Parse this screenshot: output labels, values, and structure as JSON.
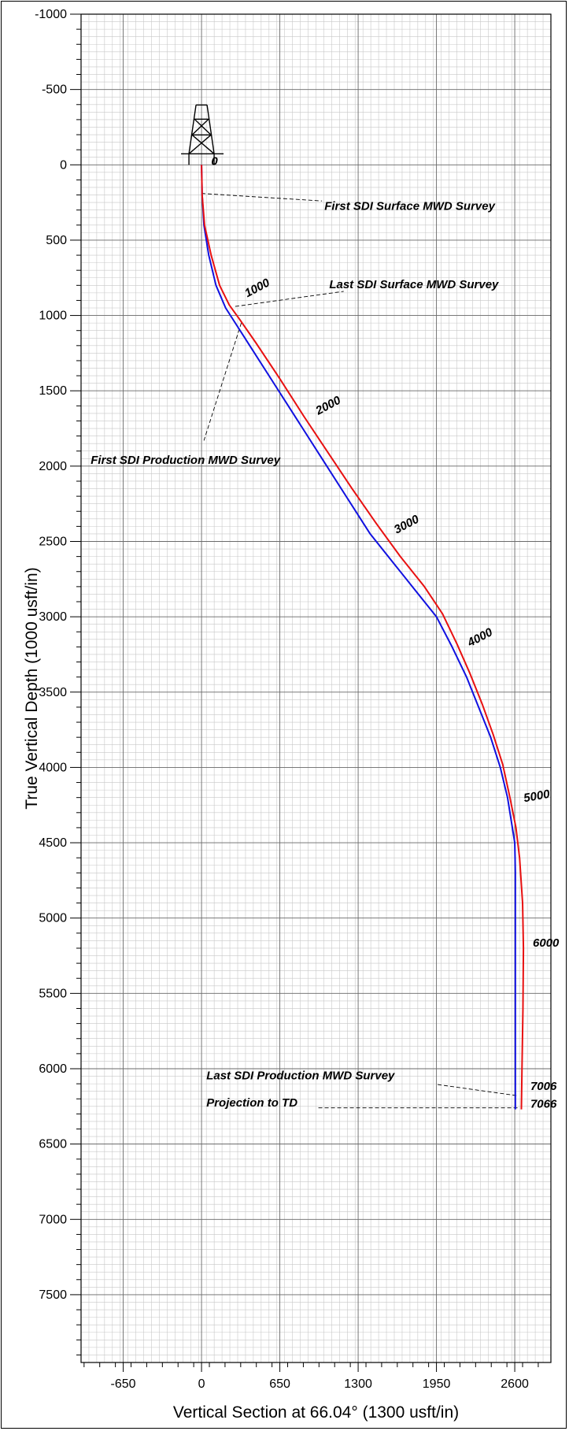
{
  "chart_data": {
    "type": "line",
    "xlabel": "Vertical Section at 66.04° (1300 usft/in)",
    "ylabel": "True Vertical Depth (1000 usft/in)",
    "xlim": [
      -1000,
      2900
    ],
    "ylim": [
      -1000,
      7950
    ],
    "y_inverted": true,
    "grid": true,
    "x_ticks": [
      -650,
      0,
      650,
      1300,
      1950,
      2600
    ],
    "y_ticks": [
      -1000,
      -500,
      0,
      500,
      1000,
      1500,
      2000,
      2500,
      3000,
      3500,
      4000,
      4500,
      5000,
      5500,
      6000,
      6500,
      7000,
      7500
    ],
    "series": [
      {
        "color": "#1010e0",
        "x": [
          0,
          5,
          20,
          60,
          120,
          200,
          280,
          400,
          600,
          800,
          1000,
          1200,
          1400,
          1600,
          1800,
          1950,
          2080,
          2200,
          2300,
          2400,
          2480,
          2540,
          2580,
          2600,
          2605,
          2605,
          2605,
          2605,
          2605
        ],
        "y": [
          0,
          200,
          400,
          600,
          800,
          950,
          1050,
          1200,
          1450,
          1700,
          1950,
          2200,
          2450,
          2650,
          2850,
          3000,
          3200,
          3400,
          3600,
          3800,
          4000,
          4200,
          4400,
          4500,
          4700,
          5000,
          5500,
          6000,
          6270
        ]
      },
      {
        "color": "#e81010",
        "x": [
          0,
          5,
          25,
          80,
          150,
          230,
          320,
          450,
          650,
          850,
          1050,
          1250,
          1450,
          1650,
          1850,
          2000,
          2120,
          2230,
          2330,
          2420,
          2500,
          2560,
          2610,
          2640,
          2665,
          2672,
          2668,
          2660,
          2655
        ],
        "y": [
          0,
          200,
          400,
          600,
          800,
          930,
          1030,
          1180,
          1420,
          1670,
          1910,
          2150,
          2380,
          2600,
          2800,
          2980,
          3180,
          3380,
          3580,
          3780,
          3980,
          4200,
          4400,
          4600,
          4900,
          5200,
          5600,
          6000,
          6270
        ]
      }
    ],
    "md_labels": [
      {
        "text": "0",
        "x": 80,
        "y": 0
      },
      {
        "text": "1000",
        "x": 380,
        "y": 880
      },
      {
        "text": "2000",
        "x": 970,
        "y": 1660
      },
      {
        "text": "3000",
        "x": 1620,
        "y": 2450
      },
      {
        "text": "4000",
        "x": 2230,
        "y": 3200
      },
      {
        "text": "5000",
        "x": 2680,
        "y": 4230
      },
      {
        "text": "6000",
        "x": 2750,
        "y": 5190
      },
      {
        "text": "7006",
        "x": 2730,
        "y": 6140
      },
      {
        "text": "7066",
        "x": 2730,
        "y": 6260
      }
    ],
    "annotations": [
      {
        "text": "First SDI Surface MWD Survey",
        "text_x": 1020,
        "text_y": 300,
        "line": [
          [
            0,
            190
          ],
          [
            1000,
            240
          ]
        ]
      },
      {
        "text": "Last SDI Surface MWD Survey",
        "text_x": 1060,
        "text_y": 820,
        "line": [
          [
            280,
            940
          ],
          [
            1180,
            840
          ]
        ]
      },
      {
        "text": "First SDI Production MWD Survey",
        "text_x": -920,
        "text_y": 1985,
        "line": [
          [
            330,
            1050
          ],
          [
            20,
            1830
          ]
        ]
      },
      {
        "text": "Last SDI Production MWD Survey",
        "text_x": 40,
        "text_y": 6070,
        "line": [
          [
            1960,
            6105
          ],
          [
            2630,
            6180
          ]
        ]
      },
      {
        "text": "Projection to TD",
        "text_x": 40,
        "text_y": 6250,
        "line": [
          [
            970,
            6260
          ],
          [
            2630,
            6260
          ]
        ]
      }
    ],
    "rig": {
      "x": 0,
      "y": 0
    }
  }
}
